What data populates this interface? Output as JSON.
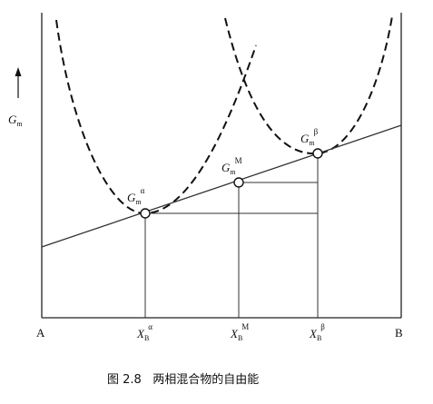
{
  "figure": {
    "caption": "图 2.8   两相混合物的自由能",
    "y_axis_label": {
      "main": "G",
      "sub": "m"
    },
    "x_axis_ends": {
      "left": "A",
      "right": "B"
    },
    "points": {
      "alpha": {
        "main": "G",
        "sub": "m",
        "sup": "α"
      },
      "mix": {
        "main": "G",
        "sub": "m",
        "sup": "M"
      },
      "beta": {
        "main": "G",
        "sub": "m",
        "sup": "β"
      }
    },
    "x_ticks": {
      "alpha": {
        "main": "X",
        "sub": "B",
        "sup": "α"
      },
      "mix": {
        "main": "X",
        "sub": "B",
        "sup": "M"
      },
      "beta": {
        "main": "X",
        "sub": "B",
        "sup": "β"
      }
    }
  }
}
